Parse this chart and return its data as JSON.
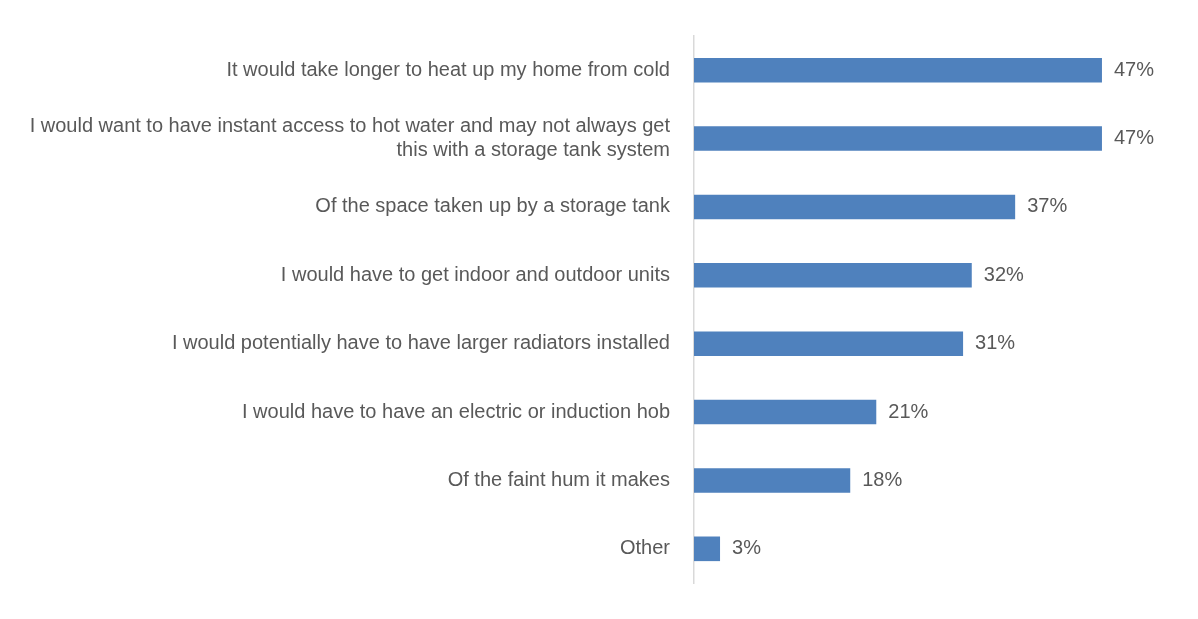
{
  "chart_data": {
    "type": "bar",
    "orientation": "horizontal",
    "categories": [
      "It would take longer to heat up my home from cold",
      "I would want to have instant access to hot water and may not always get this with a storage tank system",
      "Of the space taken up by a storage tank",
      "I would have to get indoor and outdoor units",
      "I would potentially have to have larger radiators installed",
      "I would have to have an electric or induction hob",
      "Of the faint hum it makes",
      "Other"
    ],
    "values": [
      47,
      47,
      37,
      32,
      31,
      21,
      18,
      3
    ],
    "value_labels": [
      "47%",
      "47%",
      "37%",
      "32%",
      "31%",
      "21%",
      "18%",
      "3%"
    ],
    "color": "#4f81bd",
    "legend": false,
    "tick_labels": "y"
  }
}
